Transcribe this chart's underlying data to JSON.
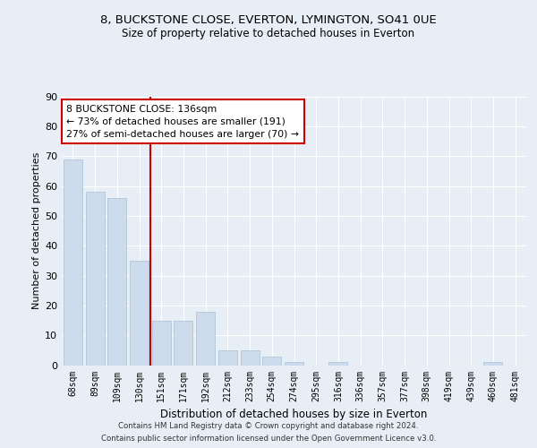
{
  "title1": "8, BUCKSTONE CLOSE, EVERTON, LYMINGTON, SO41 0UE",
  "title2": "Size of property relative to detached houses in Everton",
  "xlabel": "Distribution of detached houses by size in Everton",
  "ylabel": "Number of detached properties",
  "categories": [
    "68sqm",
    "89sqm",
    "109sqm",
    "130sqm",
    "151sqm",
    "171sqm",
    "192sqm",
    "212sqm",
    "233sqm",
    "254sqm",
    "274sqm",
    "295sqm",
    "316sqm",
    "336sqm",
    "357sqm",
    "377sqm",
    "398sqm",
    "419sqm",
    "439sqm",
    "460sqm",
    "481sqm"
  ],
  "values": [
    69,
    58,
    56,
    35,
    15,
    15,
    18,
    5,
    5,
    3,
    1,
    0,
    1,
    0,
    0,
    0,
    0,
    0,
    0,
    1,
    0
  ],
  "bar_color": "#ccdcec",
  "bar_edge_color": "#a8bfd4",
  "vline_x": 3.5,
  "vline_color": "#cc0000",
  "annotation_line1": "8 BUCKSTONE CLOSE: 136sqm",
  "annotation_line2": "← 73% of detached houses are smaller (191)",
  "annotation_line3": "27% of semi-detached houses are larger (70) →",
  "annotation_box_color": "#ffffff",
  "annotation_box_edge": "#cc0000",
  "footer1": "Contains HM Land Registry data © Crown copyright and database right 2024.",
  "footer2": "Contains public sector information licensed under the Open Government Licence v3.0.",
  "bg_color": "#e8eef5",
  "plot_bg_color": "#e8eef5",
  "ylim": [
    0,
    90
  ],
  "yticks": [
    0,
    10,
    20,
    30,
    40,
    50,
    60,
    70,
    80,
    90
  ]
}
